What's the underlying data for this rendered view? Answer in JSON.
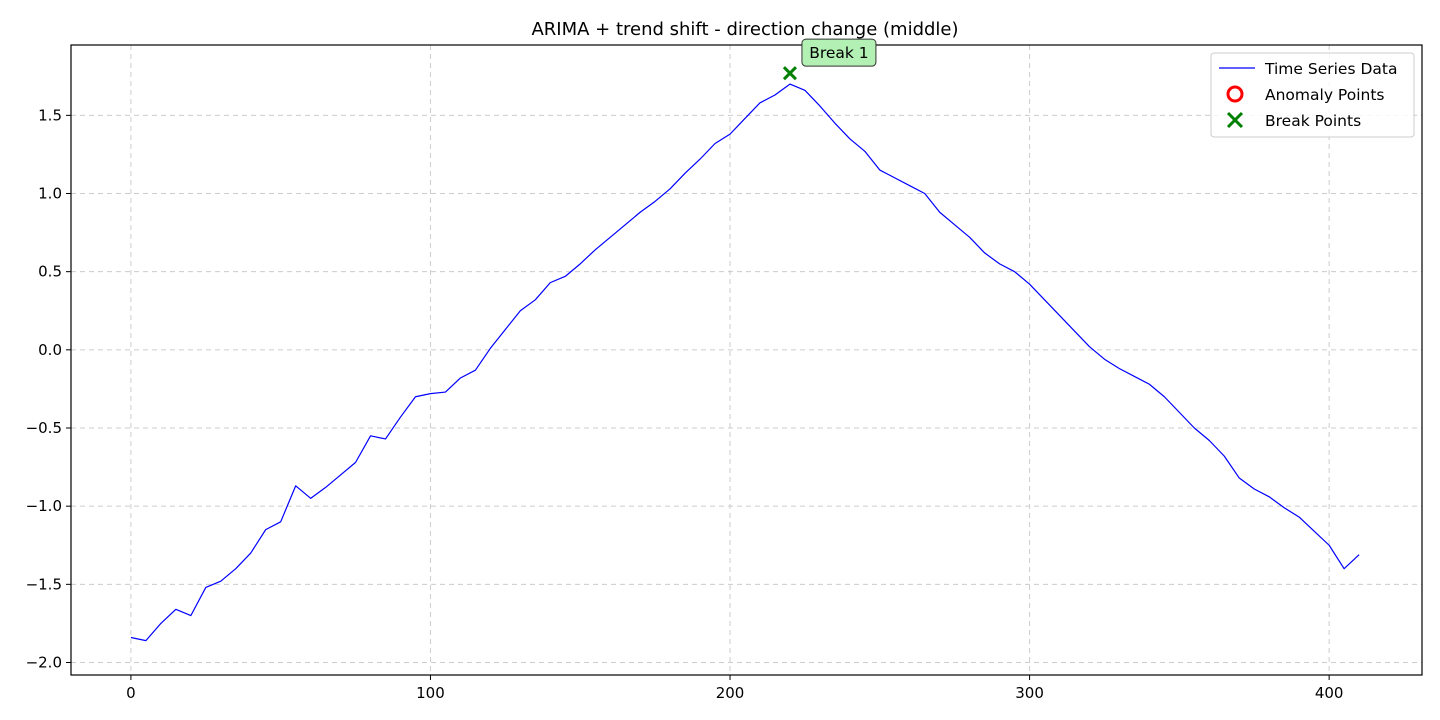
{
  "chart_data": {
    "type": "line",
    "title": "ARIMA + trend shift - direction change (middle)",
    "xlabel": "",
    "ylabel": "",
    "xlim": [
      -20,
      431
    ],
    "ylim": [
      -2.08,
      1.95
    ],
    "x_ticks": [
      0,
      100,
      200,
      300,
      400
    ],
    "y_ticks": [
      -2.0,
      -1.5,
      -1.0,
      -0.5,
      0.0,
      0.5,
      1.0,
      1.5
    ],
    "x_tick_labels": [
      "0",
      "100",
      "200",
      "300",
      "400"
    ],
    "y_tick_labels": [
      "−2.0",
      "−1.5",
      "−1.0",
      "−0.5",
      "0.0",
      "0.5",
      "1.0",
      "1.5"
    ],
    "grid": true,
    "legend_position": "upper right",
    "series": [
      {
        "name": "Time Series Data",
        "kind": "line",
        "color": "#0000ff",
        "x": [
          0,
          5,
          10,
          15,
          20,
          25,
          30,
          35,
          40,
          45,
          50,
          55,
          60,
          65,
          70,
          75,
          80,
          85,
          90,
          95,
          100,
          105,
          110,
          115,
          120,
          125,
          130,
          135,
          140,
          145,
          150,
          155,
          160,
          165,
          170,
          175,
          180,
          185,
          190,
          195,
          200,
          205,
          210,
          215,
          220,
          225,
          230,
          235,
          240,
          245,
          250,
          255,
          260,
          265,
          270,
          275,
          280,
          285,
          290,
          295,
          300,
          305,
          310,
          315,
          320,
          325,
          330,
          335,
          340,
          345,
          350,
          355,
          360,
          365,
          370,
          375,
          380,
          385,
          390,
          395,
          400,
          405,
          410
        ],
        "y": [
          -1.84,
          -1.86,
          -1.75,
          -1.66,
          -1.7,
          -1.52,
          -1.48,
          -1.4,
          -1.3,
          -1.15,
          -1.1,
          -0.87,
          -0.95,
          -0.88,
          -0.8,
          -0.72,
          -0.55,
          -0.57,
          -0.43,
          -0.3,
          -0.28,
          -0.27,
          -0.18,
          -0.13,
          0.01,
          0.13,
          0.25,
          0.32,
          0.43,
          0.47,
          0.55,
          0.64,
          0.72,
          0.8,
          0.88,
          0.95,
          1.03,
          1.13,
          1.22,
          1.32,
          1.38,
          1.48,
          1.58,
          1.63,
          1.7,
          1.66,
          1.56,
          1.45,
          1.35,
          1.27,
          1.15,
          1.1,
          1.05,
          1.0,
          0.88,
          0.8,
          0.72,
          0.62,
          0.55,
          0.5,
          0.42,
          0.32,
          0.22,
          0.12,
          0.02,
          -0.06,
          -0.12,
          -0.17,
          -0.22,
          -0.3,
          -0.4,
          -0.5,
          -0.58,
          -0.68,
          -0.82,
          -0.89,
          -0.94,
          -1.01,
          -1.07,
          -1.16,
          -1.25,
          -1.4,
          -1.31
        ]
      },
      {
        "name": "Anomaly Points",
        "kind": "scatter",
        "color": "#ff0000",
        "marker": "circle",
        "x": [],
        "y": []
      },
      {
        "name": "Break Points",
        "kind": "scatter",
        "color": "#008000",
        "marker": "x",
        "x": [
          220
        ],
        "y": [
          1.77
        ]
      }
    ],
    "annotations": [
      {
        "text": "Break 1",
        "x": 220,
        "y": 1.77,
        "background": "#b3f0b3"
      }
    ]
  }
}
